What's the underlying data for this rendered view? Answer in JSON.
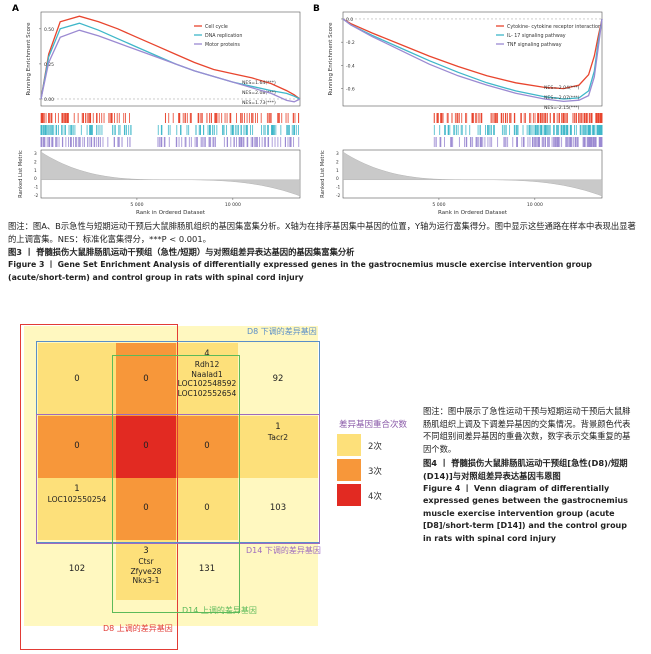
{
  "colors": {
    "cell_cycle": "#e8452e",
    "dna_replication": "#3fb7c9",
    "motor_proteins": "#9b8ad2",
    "cytokine": "#e8452e",
    "il17": "#3fb7c9",
    "tnf": "#9b8ad2",
    "venn_2": "#fde07a",
    "venn_3": "#f7973a",
    "venn_4": "#e22a22",
    "d8_down": "#5a8ec8",
    "d8_up": "#e23b35",
    "d14_down": "#9d6bbf",
    "d14_up": "#5cba5a",
    "metric_fill": "#c9c9c9"
  },
  "figure3": {
    "caption_cn": "图注：图A、B示急性与短期运动干预后大鼠腓肠肌组织的基因集富集分析。X轴为在排序基因集中基因的位置，Y轴为运行富集得分。图中显示这些通路在样本中表现出显著的上调富集。NES：标准化富集得分，***P < 0.001。",
    "title_cn": "图3 丨 脊髓损伤大鼠腓肠肌运动干预组（急性/短期）与对照组差异表达基因的基因集富集分析",
    "title_en": "Figure 3 丨 Gene Set Enrichment Analysis of differentially expressed genes in the gastrocnemius muscle exercise intervention group (acute/short-term) and control group in rats with spinal cord injury"
  },
  "chart_data": [
    {
      "type": "line",
      "panel": "A",
      "title": "",
      "ylabel": "Running Enrichment Score",
      "xlabel": "Rank in Ordered Dataset",
      "ylim": [
        -0.05,
        0.62
      ],
      "xlim": [
        0,
        13500
      ],
      "y_ticks": [
        "0.50",
        "0.25",
        "0.00"
      ],
      "x_ticks": [
        "5 000",
        "10 000"
      ],
      "series": [
        {
          "name": "Cell cycle",
          "nes": "NES=1.64(***)",
          "x": [
            0,
            400,
            1000,
            2000,
            3000,
            4000,
            5000,
            6000,
            7000,
            8000,
            9000,
            10000,
            11000,
            12000,
            12800,
            13200,
            13500
          ],
          "y": [
            0.0,
            0.32,
            0.55,
            0.59,
            0.55,
            0.5,
            0.44,
            0.38,
            0.32,
            0.26,
            0.21,
            0.18,
            0.15,
            0.11,
            0.06,
            0.03,
            0.0
          ]
        },
        {
          "name": "DNA replication",
          "nes": "NES=2.08(***)",
          "x": [
            0,
            400,
            1000,
            2000,
            3000,
            4000,
            5000,
            6000,
            7000,
            8000,
            9000,
            10000,
            11000,
            12000,
            12800,
            13200,
            13500
          ],
          "y": [
            0.0,
            0.3,
            0.5,
            0.54,
            0.49,
            0.43,
            0.37,
            0.31,
            0.25,
            0.2,
            0.16,
            0.12,
            0.09,
            0.06,
            0.04,
            0.02,
            0.0
          ]
        },
        {
          "name": "Motor proteins",
          "nes": "NES=1.73(***)",
          "x": [
            0,
            400,
            1000,
            2000,
            3000,
            4000,
            5000,
            6000,
            7000,
            8000,
            9000,
            10000,
            11000,
            12000,
            12800,
            13200,
            13500
          ],
          "y": [
            0.0,
            0.26,
            0.44,
            0.49,
            0.45,
            0.4,
            0.35,
            0.3,
            0.25,
            0.2,
            0.16,
            0.12,
            0.08,
            0.04,
            -0.01,
            -0.02,
            0.0
          ]
        }
      ]
    },
    {
      "type": "line",
      "panel": "B",
      "title": "",
      "ylabel": "Running Enrichment Score",
      "xlabel": "Rank in Ordered Dataset",
      "ylim": [
        -0.75,
        0.06
      ],
      "xlim": [
        0,
        13500
      ],
      "y_ticks": [
        "0.0",
        "-0.2",
        "-0.4",
        "-0.6"
      ],
      "x_ticks": [
        "5 000",
        "10 000"
      ],
      "series": [
        {
          "name": "Cytokine- cytokine receptor interaction",
          "nes": "NES=-2.04(***)",
          "x": [
            0,
            400,
            1500,
            3000,
            4500,
            6000,
            7500,
            9000,
            10500,
            11500,
            12300,
            12800,
            13100,
            13300,
            13500
          ],
          "y": [
            0.0,
            -0.04,
            -0.12,
            -0.22,
            -0.32,
            -0.41,
            -0.49,
            -0.55,
            -0.59,
            -0.6,
            -0.57,
            -0.48,
            -0.32,
            -0.15,
            0.0
          ]
        },
        {
          "name": "IL- 17 signaling pathway",
          "nes": "NES=-2.07(***)",
          "x": [
            0,
            400,
            1500,
            3000,
            4500,
            6000,
            7500,
            9000,
            10500,
            11500,
            12300,
            12800,
            13100,
            13300,
            13500
          ],
          "y": [
            0.0,
            -0.05,
            -0.14,
            -0.25,
            -0.36,
            -0.46,
            -0.55,
            -0.62,
            -0.67,
            -0.69,
            -0.68,
            -0.62,
            -0.45,
            -0.2,
            0.0
          ]
        },
        {
          "name": "TNF signaling pathway",
          "nes": "NES=-2.15(***)",
          "x": [
            0,
            400,
            1500,
            3000,
            4500,
            6000,
            7500,
            9000,
            10500,
            11500,
            12300,
            12800,
            13100,
            13300,
            13500
          ],
          "y": [
            0.0,
            -0.05,
            -0.15,
            -0.27,
            -0.39,
            -0.49,
            -0.57,
            -0.64,
            -0.69,
            -0.71,
            -0.7,
            -0.66,
            -0.5,
            -0.25,
            0.0
          ]
        }
      ],
      "metric_ylabel": "Ranked List Metric",
      "metric_ticks": [
        "3",
        "2",
        "1",
        "0",
        "-1",
        "-2"
      ]
    },
    {
      "type": "table",
      "title": "Venn diagram of differentially expressed genes",
      "legend_title": "差异基因重合次数",
      "legend": [
        {
          "label": "2次",
          "overlap": 2
        },
        {
          "label": "3次",
          "overlap": 3
        },
        {
          "label": "4次",
          "overlap": 4
        }
      ],
      "sets": {
        "d8_down": "D8 下调的差异基因",
        "d8_up": "D8 上调的差异基因",
        "d14_down": "D14 下调的差异基因",
        "d14_up": "D14 上调的差异基因"
      },
      "cells": [
        {
          "id": "r1c1",
          "value": "0",
          "genes": "",
          "overlap": 2
        },
        {
          "id": "r1c2",
          "value": "0",
          "genes": "",
          "overlap": 3
        },
        {
          "id": "r1c3",
          "value": "4",
          "genes": "Rdh12\nNaalad1\nLOC102548592\nLOC102552654",
          "overlap": 2
        },
        {
          "id": "r1c4",
          "value": "92",
          "genes": "",
          "overlap": 1
        },
        {
          "id": "r2c1",
          "value": "0",
          "genes": "",
          "overlap": 3
        },
        {
          "id": "r2c2",
          "value": "0",
          "genes": "",
          "overlap": 4
        },
        {
          "id": "r2c3",
          "value": "0",
          "genes": "",
          "overlap": 3
        },
        {
          "id": "r2c4",
          "value": "1",
          "genes": "Tacr2",
          "overlap": 2
        },
        {
          "id": "r3c1",
          "value": "1",
          "genes": "LOC102550254",
          "overlap": 2
        },
        {
          "id": "r3c2",
          "value": "0",
          "genes": "",
          "overlap": 3
        },
        {
          "id": "r3c3",
          "value": "0",
          "genes": "",
          "overlap": 2
        },
        {
          "id": "r3c4",
          "value": "103",
          "genes": "",
          "overlap": 1
        },
        {
          "id": "r4c1",
          "value": "102",
          "genes": "",
          "overlap": 1
        },
        {
          "id": "r4c2",
          "value": "3",
          "genes": "Ctsr\nZfyve28\nNkx3-1",
          "overlap": 2
        },
        {
          "id": "r4c3",
          "value": "131",
          "genes": "",
          "overlap": 1
        }
      ]
    }
  ],
  "figure4": {
    "caption_cn": "图注：图中展示了急性运动干预与短期运动干预后大鼠腓肠肌组织上调及下调差异基因的交集情况。背景颜色代表不同组别间差异基因的重叠次数，数字表示交集重复的基因个数。",
    "title_cn": "图4 丨 脊髓损伤大鼠腓肠肌运动干预组[急性(D8)/短期(D14)]与对照组差异表达基因韦恩图",
    "title_en": "Figure 4 丨 Venn diagram of differentially expressed genes between the gastrocnemius muscle exercise intervention group (acute [D8]/short-term [D14]) and the control group in rats with spinal cord injury"
  }
}
